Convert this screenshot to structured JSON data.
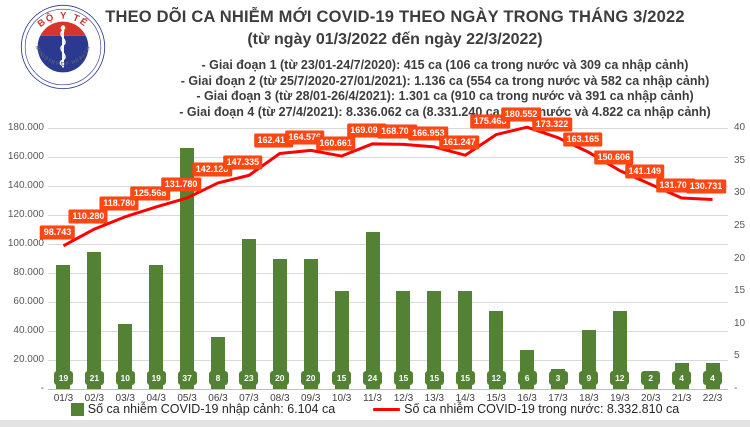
{
  "header": {
    "title": "THEO DÕI CA NHIỄM MỚI COVID-19 THEO NGÀY TRONG THÁNG 3/2022",
    "subtitle": "(từ ngày 01/3/2022 đến ngày 22/3/2022)",
    "phases": [
      "- Giai đoạn 1 (từ 23/01-24/7/2020): 415 ca (106 ca trong nước và 309 ca nhập cảnh)",
      "- Giai đoạn 2 (từ 25/7/2020-27/01/2021): 1.136 ca (554 ca trong nước và 582 ca nhập cảnh)",
      "- Giai đoạn 3 (từ 28/01-26/4/2021): 1.301 ca (910 ca trong nước và 391 ca nhập cảnh)",
      "- Giai đoạn 4 (từ 27/4/2021): 8.336.062 ca (8.331.240 ca trong nước và 4.822 ca nhập cảnh)"
    ],
    "logo": {
      "top_text": "BỘ Y TẾ",
      "bottom_text": "MINISTRY OF HEALTH"
    }
  },
  "chart_data": {
    "type": "bar+line",
    "title": "THEO DÕI CA NHIỄM MỚI COVID-19 THEO NGÀY TRONG THÁNG 3/2022",
    "categories": [
      "01/3",
      "02/3",
      "03/3",
      "04/3",
      "05/3",
      "06/3",
      "07/3",
      "08/3",
      "09/3",
      "10/3",
      "11/3",
      "12/3",
      "13/3",
      "14/3",
      "15/3",
      "16/3",
      "17/3",
      "18/3",
      "19/3",
      "20/3",
      "21/3",
      "22/3"
    ],
    "series": [
      {
        "name": "Số ca nhiễm COVID-19 nhập cảnh",
        "type": "bar",
        "yaxis": "right",
        "values": [
          19,
          21,
          10,
          19,
          37,
          8,
          23,
          20,
          20,
          15,
          24,
          15,
          15,
          15,
          12,
          6,
          3,
          9,
          12,
          2,
          4,
          4
        ]
      },
      {
        "name": "Số ca nhiễm COVID-19 trong nước",
        "type": "line",
        "yaxis": "left",
        "values": [
          98743,
          110280,
          118780,
          125568,
          131780,
          142128,
          147335,
          162415,
          164576,
          160661,
          169090,
          168704,
          166953,
          161247,
          175468,
          180552,
          173322,
          163165,
          150606,
          141149,
          131709,
          130731
        ],
        "labels": [
          "98.743",
          "110.280",
          "118.780",
          "125.568",
          "131.780",
          "142.128",
          "147.335",
          "162.415",
          "164.576",
          "160.661",
          "169.090",
          "168.704",
          "166.953",
          "161.247",
          "175.468",
          "180.552",
          "173.322",
          "163.165",
          "150.606",
          "141.149",
          "131.709",
          "130.731"
        ]
      }
    ],
    "left_axis": {
      "max": 180000,
      "ticks": [
        "180.000",
        "160.000",
        "140.000",
        "120.000",
        "100.000",
        "80.000",
        "60.000",
        "40.000",
        "20.000",
        "-"
      ]
    },
    "right_axis": {
      "max": 40,
      "ticks": [
        "40",
        "35",
        "30",
        "25",
        "20",
        "15",
        "10",
        "5",
        "-"
      ]
    },
    "grid": true,
    "legend_position": "bottom"
  },
  "legend": [
    {
      "type": "bar",
      "label": "Số ca nhiễm COVID-19 nhập cảnh: 6.104 ca"
    },
    {
      "type": "line",
      "label": "Số ca nhiễm COVID-19 trong nước: 8.332.810 ca"
    }
  ],
  "colors": {
    "bar": "#548235",
    "line": "#ff0000",
    "line_label_bg": "#ff4713",
    "title_text": "#3d3d3d",
    "logo_red": "#d6352b",
    "logo_blue": "#2b3990",
    "star_yellow": "#ffde00"
  }
}
